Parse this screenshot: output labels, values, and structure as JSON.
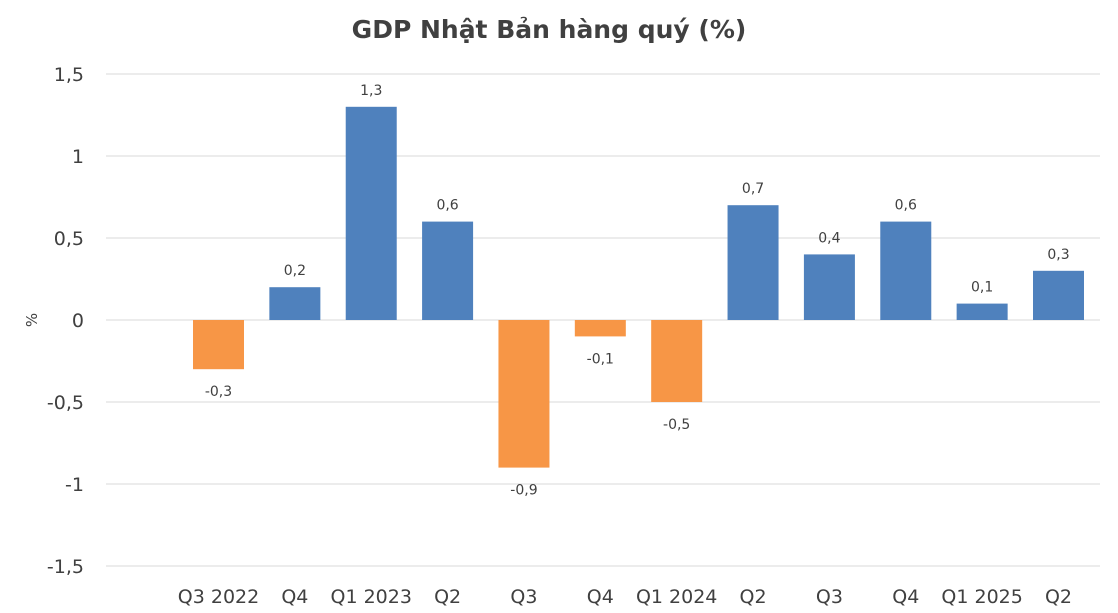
{
  "chart_data": {
    "type": "bar",
    "title": "GDP Nhật Bản hàng quý (%)",
    "xlabel": "",
    "ylabel": "%",
    "ylim": [
      -1.5,
      1.5
    ],
    "yticks": [
      1.5,
      1,
      0.5,
      0,
      -0.5,
      -1,
      -1.5
    ],
    "ytick_labels": [
      "1,5",
      "1",
      "0,5",
      "0",
      "-0,5",
      "-1",
      "-1,5"
    ],
    "grid": true,
    "legend": "none",
    "categories": [
      "Q3 2022",
      "Q4",
      "Q1 2023",
      "Q2",
      "Q3",
      "Q4",
      "Q1 2024",
      "Q2",
      "Q3",
      "Q4",
      "Q1 2025",
      "Q2"
    ],
    "values": [
      -0.3,
      0.2,
      1.3,
      0.6,
      -0.9,
      -0.1,
      -0.5,
      0.7,
      0.4,
      0.6,
      0.1,
      0.3
    ],
    "data_labels": [
      "-0,3",
      "0,2",
      "1,3",
      "0,6",
      "-0,9",
      "-0,1",
      "-0,5",
      "0,7",
      "0,4",
      "0,6",
      "0,1",
      "0,3"
    ],
    "colors": {
      "positive": "#4f81bd",
      "negative": "#f79646"
    }
  }
}
